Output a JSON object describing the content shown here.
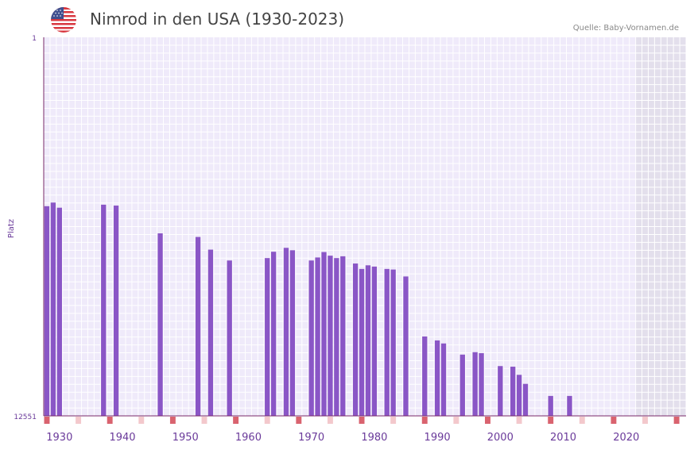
{
  "header": {
    "title": "Nimrod in den USA (1930-2023)",
    "source": "Quelle: Baby-Vornamen.de",
    "flag_icon": "us-flag-icon"
  },
  "colors": {
    "bar": "#8a56c6",
    "plot_bg": "#efeafa",
    "grid": "#ffffff",
    "axis": "#7a2a6a",
    "tick_label": "#6a3a9a",
    "decade_marker": "#d9636f",
    "minor_marker": "#f3c8cc",
    "future_shade": "#e3dfec"
  },
  "chart_data": {
    "type": "bar",
    "title": "Nimrod in den USA (1930-2023)",
    "xlabel": "",
    "ylabel": "Platz",
    "y_axis": "rank (inverted: 1 at top)",
    "ylim": [
      1,
      12551
    ],
    "xlim": [
      1928,
      2029
    ],
    "shaded_region": [
      2022,
      2029
    ],
    "x_tick_labels": [
      "1930",
      "1940",
      "1950",
      "1960",
      "1970",
      "1980",
      "1990",
      "2000",
      "2010",
      "2020"
    ],
    "y_tick_labels": [
      "1",
      "12551"
    ],
    "series": [
      {
        "name": "Nimrod",
        "points": [
          {
            "year": 1928,
            "rank": 5600
          },
          {
            "year": 1929,
            "rank": 5480
          },
          {
            "year": 1930,
            "rank": 5650
          },
          {
            "year": 1937,
            "rank": 5550
          },
          {
            "year": 1939,
            "rank": 5580
          },
          {
            "year": 1946,
            "rank": 6500
          },
          {
            "year": 1952,
            "rank": 6620
          },
          {
            "year": 1954,
            "rank": 7040
          },
          {
            "year": 1957,
            "rank": 7400
          },
          {
            "year": 1963,
            "rank": 7320
          },
          {
            "year": 1964,
            "rank": 7110
          },
          {
            "year": 1966,
            "rank": 6980
          },
          {
            "year": 1967,
            "rank": 7060
          },
          {
            "year": 1970,
            "rank": 7400
          },
          {
            "year": 1971,
            "rank": 7300
          },
          {
            "year": 1972,
            "rank": 7120
          },
          {
            "year": 1973,
            "rank": 7240
          },
          {
            "year": 1974,
            "rank": 7320
          },
          {
            "year": 1975,
            "rank": 7260
          },
          {
            "year": 1977,
            "rank": 7500
          },
          {
            "year": 1978,
            "rank": 7680
          },
          {
            "year": 1979,
            "rank": 7560
          },
          {
            "year": 1980,
            "rank": 7600
          },
          {
            "year": 1982,
            "rank": 7680
          },
          {
            "year": 1983,
            "rank": 7700
          },
          {
            "year": 1985,
            "rank": 7930
          },
          {
            "year": 1988,
            "rank": 9920
          },
          {
            "year": 1990,
            "rank": 10050
          },
          {
            "year": 1991,
            "rank": 10150
          },
          {
            "year": 1994,
            "rank": 10520
          },
          {
            "year": 1996,
            "rank": 10440
          },
          {
            "year": 1997,
            "rank": 10470
          },
          {
            "year": 2000,
            "rank": 10900
          },
          {
            "year": 2002,
            "rank": 10920
          },
          {
            "year": 2003,
            "rank": 11190
          },
          {
            "year": 2004,
            "rank": 11490
          },
          {
            "year": 2008,
            "rank": 11890
          },
          {
            "year": 2011,
            "rank": 11890
          }
        ]
      }
    ]
  }
}
